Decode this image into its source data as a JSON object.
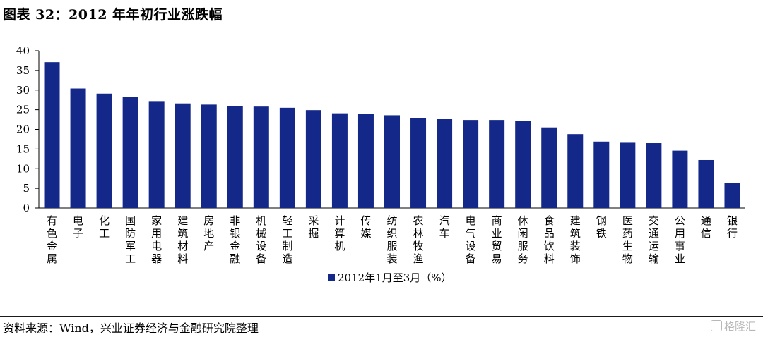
{
  "title": "图表 32：2012 年年初行业涨跌幅",
  "source": "资料来源：Wind，兴业证券经济与金融研究院整理",
  "watermark": "格隆汇",
  "colors": {
    "bar": "#14288a",
    "axis": "#000000"
  },
  "chart_data": {
    "type": "bar",
    "title": "",
    "xlabel": "",
    "ylabel": "",
    "ylim": [
      0,
      40
    ],
    "yticks": [
      0,
      5,
      10,
      15,
      20,
      25,
      30,
      35,
      40
    ],
    "grid": false,
    "legend_position": "bottom-center",
    "categories": [
      "有色金属",
      "电子",
      "化工",
      "国防军工",
      "家用电器",
      "建筑材料",
      "房地产",
      "非银金融",
      "机械设备",
      "轻工制造",
      "采掘",
      "计算机",
      "传媒",
      "纺织服装",
      "农林牧渔",
      "汽车",
      "电气设备",
      "商业贸易",
      "休闲服务",
      "食品饮料",
      "建筑装饰",
      "钢铁",
      "医药生物",
      "交通运输",
      "公用事业",
      "通信",
      "银行"
    ],
    "series": [
      {
        "name": "2012年1月至3月（%）",
        "values": [
          37.1,
          30.4,
          29.1,
          28.3,
          27.2,
          26.6,
          26.3,
          26.0,
          25.8,
          25.5,
          24.9,
          24.1,
          23.9,
          23.6,
          22.9,
          22.6,
          22.4,
          22.4,
          22.2,
          20.5,
          18.8,
          16.9,
          16.6,
          16.5,
          14.6,
          12.2,
          6.3
        ]
      }
    ]
  }
}
